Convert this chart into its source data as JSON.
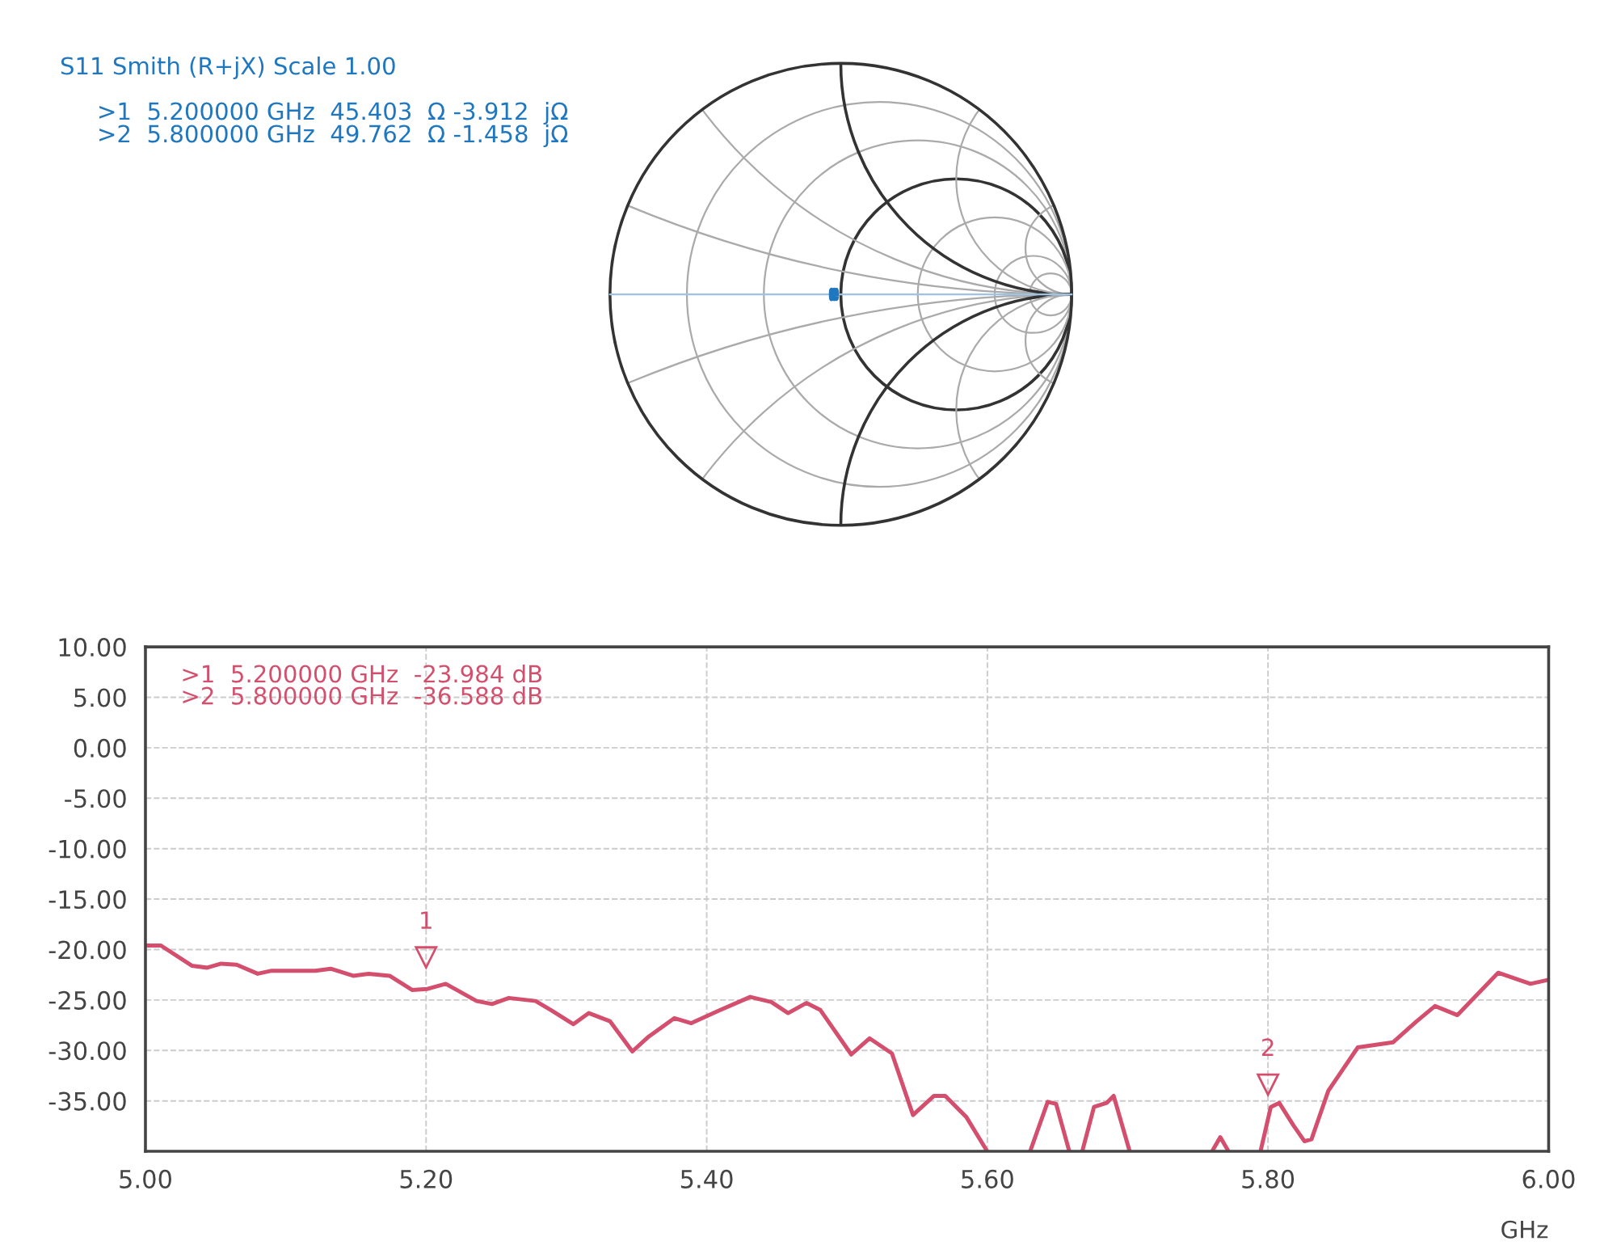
{
  "chart_data": [
    {
      "type": "other",
      "title": "S11 Smith (R+jX) Scale 1.00",
      "color": "#1f77c0",
      "annotations": [
        ">1  5.200000 GHz  45.403  Ω -3.912  jΩ",
        ">2  5.800000 GHz  49.762  Ω -1.458  jΩ"
      ]
    },
    {
      "type": "line",
      "xlabel": "GHz",
      "xlim": [
        5.0,
        6.0
      ],
      "xticks": [
        {
          "value": 5.0,
          "label": "5.00"
        },
        {
          "value": 5.2,
          "label": "5.20"
        },
        {
          "value": 5.4,
          "label": "5.40"
        },
        {
          "value": 5.6,
          "label": "5.60"
        },
        {
          "value": 5.8,
          "label": "5.80"
        },
        {
          "value": 6.0,
          "label": "6.00"
        }
      ],
      "ylim": [
        -40,
        10
      ],
      "yticks": [
        {
          "value": 10,
          "label": "10.00"
        },
        {
          "value": 5,
          "label": "5.00"
        },
        {
          "value": 0,
          "label": "0.00"
        },
        {
          "value": -5,
          "label": "-5.00"
        },
        {
          "value": -10,
          "label": "-10.00"
        },
        {
          "value": -15,
          "label": "-15.00"
        },
        {
          "value": -20,
          "label": "-20.00"
        },
        {
          "value": -25,
          "label": "-25.00"
        },
        {
          "value": -30,
          "label": "-30.00"
        },
        {
          "value": -35,
          "label": "-35.00"
        }
      ],
      "grid": true,
      "marker": "none",
      "line_style": "solid",
      "series": [
        {
          "color": "#d44f6e",
          "x": [
            5.0,
            5.011,
            5.033,
            5.044,
            5.054,
            5.065,
            5.08,
            5.09,
            5.121,
            5.132,
            5.148,
            5.159,
            5.174,
            5.19,
            5.201,
            5.214,
            5.236,
            5.247,
            5.259,
            5.278,
            5.289,
            5.305,
            5.316,
            5.331,
            5.347,
            5.358,
            5.377,
            5.389,
            5.408,
            5.431,
            5.446,
            5.458,
            5.471,
            5.481,
            5.503,
            5.516,
            5.532,
            5.547,
            5.562,
            5.57,
            5.585,
            5.599,
            5.615,
            5.631,
            5.643,
            5.649,
            5.658,
            5.663,
            5.668,
            5.676,
            5.685,
            5.69,
            5.701,
            5.73,
            5.761,
            5.766,
            5.771,
            5.783,
            5.795,
            5.802,
            5.808,
            5.818,
            5.826,
            5.831,
            5.843,
            5.864,
            5.889,
            5.906,
            5.919,
            5.935,
            5.964,
            5.987,
            6.0
          ],
          "values": [
            -19.6,
            -19.6,
            -21.6,
            -21.8,
            -21.4,
            -21.5,
            -22.4,
            -22.1,
            -22.1,
            -21.9,
            -22.6,
            -22.4,
            -22.6,
            -24.0,
            -23.9,
            -23.4,
            -25.1,
            -25.4,
            -24.8,
            -25.1,
            -26.0,
            -27.4,
            -26.3,
            -27.1,
            -30.1,
            -28.7,
            -26.8,
            -27.3,
            -26.1,
            -24.7,
            -25.2,
            -26.3,
            -25.3,
            -26.0,
            -30.4,
            -28.8,
            -30.3,
            -36.4,
            -34.5,
            -34.5,
            -36.6,
            -39.8,
            null,
            -39.8,
            -35.1,
            -35.3,
            -39.8,
            null,
            -39.8,
            -35.6,
            -35.2,
            -34.5,
            -39.8,
            null,
            -39.8,
            -38.6,
            -39.8,
            null,
            -39.8,
            -35.6,
            -35.2,
            -37.4,
            -39.0,
            -38.8,
            -34.0,
            -29.7,
            -29.2,
            -27.1,
            -25.6,
            -26.5,
            -22.3,
            -23.4,
            -23.0
          ]
        }
      ],
      "annotations": [
        ">1  5.200000 GHz  -23.984 dB\n>2  5.800000 GHz  -36.588 dB",
        {
          "text": "1",
          "x": 5.2,
          "y": -23.984
        },
        {
          "text": "2",
          "x": 5.8,
          "y": -36.588
        }
      ]
    }
  ]
}
